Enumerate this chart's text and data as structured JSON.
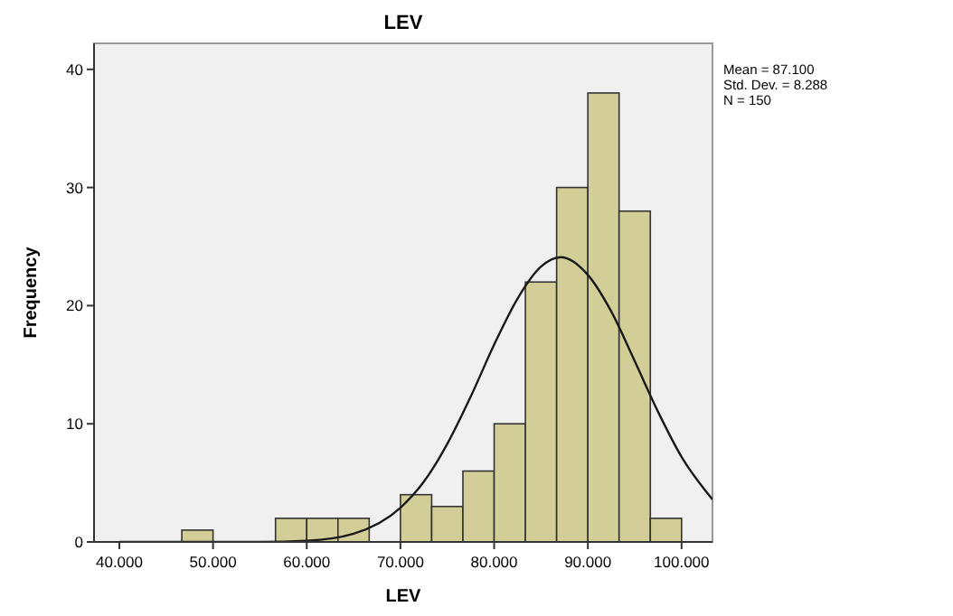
{
  "chart_data": {
    "type": "histogram",
    "title": "LEV",
    "xlabel": "LEV",
    "ylabel": "Frequency",
    "bins": [
      46667,
      50000,
      53333,
      56667,
      60000,
      63333,
      66667,
      70000,
      73333,
      76667,
      80000,
      83333,
      86667,
      90000,
      93333,
      96667,
      100000
    ],
    "values": [
      1,
      0,
      0,
      2,
      2,
      2,
      0,
      4,
      3,
      6,
      10,
      22,
      30,
      38,
      28,
      2
    ],
    "color": "#d3ce97",
    "series": [
      {
        "type": "line",
        "color": "#1a1a1a",
        "x": [
          40000,
          50000,
          55000,
          60000,
          65000,
          70000,
          72500,
          75000,
          77500,
          80000,
          82500,
          85000,
          87100,
          90000,
          92500,
          95000,
          97500,
          100000,
          103300
        ],
        "values": [
          0,
          0,
          0,
          0.1,
          0.7,
          2.9,
          5.1,
          8.3,
          12.3,
          16.7,
          20.6,
          23.3,
          24.1,
          22.6,
          19.5,
          15.3,
          11.0,
          7.2,
          3.6
        ]
      }
    ],
    "xlim": [
      37300,
      103300
    ],
    "ylim": [
      0,
      42.2
    ],
    "xticks": [
      {
        "value": 40000,
        "label": "40.000"
      },
      {
        "value": 50000,
        "label": "50.000"
      },
      {
        "value": 60000,
        "label": "60.000"
      },
      {
        "value": 70000,
        "label": "70.000"
      },
      {
        "value": 80000,
        "label": "80.000"
      },
      {
        "value": 90000,
        "label": "90.000"
      },
      {
        "value": 100000,
        "label": "100.000"
      }
    ],
    "yticks": [
      0,
      10,
      20,
      30,
      40
    ],
    "annotations": [
      "Mean = 87.100",
      "Std. Dev. = 8.288",
      "N = 150"
    ]
  }
}
